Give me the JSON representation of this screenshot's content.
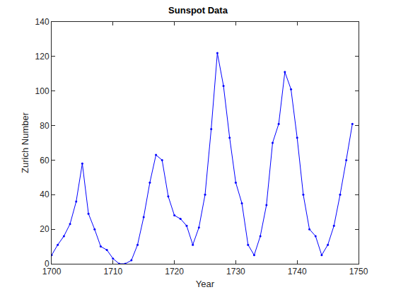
{
  "chart_data": {
    "type": "line",
    "title": "Sunspot Data",
    "x_label": "Year",
    "y_label": "Zurich Number",
    "x": [
      1700,
      1701,
      1702,
      1703,
      1704,
      1705,
      1706,
      1707,
      1708,
      1709,
      1710,
      1711,
      1712,
      1713,
      1714,
      1715,
      1716,
      1717,
      1718,
      1719,
      1720,
      1721,
      1722,
      1723,
      1724,
      1725,
      1726,
      1727,
      1728,
      1729,
      1730,
      1731,
      1732,
      1733,
      1734,
      1735,
      1736,
      1737,
      1738,
      1739,
      1740,
      1741,
      1742,
      1743,
      1744,
      1745,
      1746,
      1747,
      1748,
      1749
    ],
    "values": [
      5,
      11,
      16,
      23,
      36,
      58,
      29,
      20,
      10,
      8,
      3,
      0,
      0,
      2,
      11,
      27,
      47,
      63,
      60,
      39,
      28,
      26,
      22,
      11,
      21,
      40,
      78,
      122,
      103,
      73,
      47,
      35,
      11,
      5,
      16,
      34,
      70,
      81,
      111,
      101,
      73,
      40,
      20,
      16,
      5,
      11,
      22,
      40,
      60,
      81
    ],
    "color": "#0000ff",
    "marker": "point",
    "line_style": "solid",
    "xlim": [
      1700,
      1750
    ],
    "xticks": [
      1700,
      1710,
      1720,
      1730,
      1740,
      1750
    ],
    "ylim": [
      0,
      140
    ],
    "yticks": [
      0,
      20,
      40,
      60,
      80,
      100,
      120,
      140
    ],
    "grid": false
  }
}
